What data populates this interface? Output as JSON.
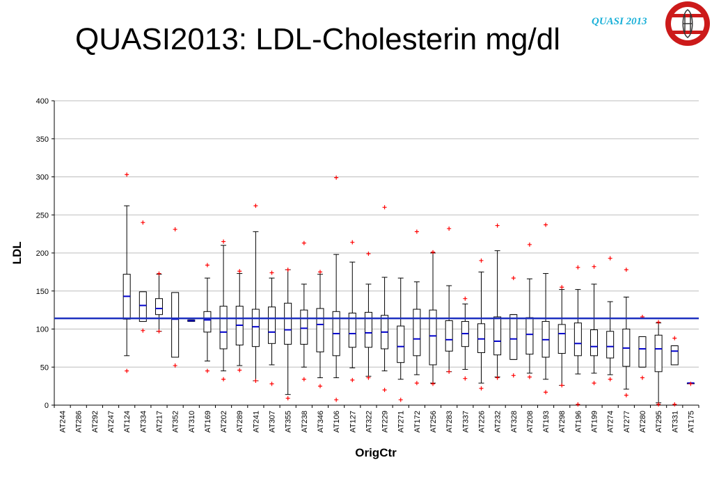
{
  "slide": {
    "title": "QUASI2013: LDL-Cholesterin mg/dl",
    "logo_text": "QUASI 2013"
  },
  "colors": {
    "reference_line": "#1c2fbf",
    "median": "#0000cc",
    "outlier": "#ff0000",
    "logo_text": "#1ab0d8",
    "logo_seal": "#cc1a1a"
  },
  "chart_data": {
    "type": "boxplot",
    "xlabel": "OrigCtr",
    "ylabel": "LDL",
    "ylim": [
      0,
      400
    ],
    "yticks": [
      0,
      50,
      100,
      150,
      200,
      250,
      300,
      350,
      400
    ],
    "grid": true,
    "reference_line": 114,
    "categories": [
      "AT244",
      "AT286",
      "AT292",
      "AT247",
      "AT124",
      "AT334",
      "AT217",
      "AT352",
      "AT310",
      "AT169",
      "AT202",
      "AT289",
      "AT241",
      "AT307",
      "AT355",
      "AT238",
      "AT346",
      "AT106",
      "AT127",
      "AT322",
      "AT229",
      "AT271",
      "AT172",
      "AT256",
      "AT283",
      "AT337",
      "AT226",
      "AT232",
      "AT328",
      "AT208",
      "AT193",
      "AT298",
      "AT196",
      "AT199",
      "AT274",
      "AT277",
      "AT280",
      "AT295",
      "AT331",
      "AT175"
    ],
    "boxes": [
      null,
      null,
      null,
      null,
      {
        "whisker_low": 65,
        "q1": 113,
        "median": 143,
        "q3": 172,
        "whisker_high": 262,
        "outliers": [
          45,
          303
        ]
      },
      {
        "whisker_low": 110,
        "q1": 110,
        "median": 131,
        "q3": 149,
        "whisker_high": 149,
        "outliers": [
          98,
          240
        ]
      },
      {
        "whisker_low": 97,
        "q1": 119,
        "median": 127,
        "q3": 140,
        "whisker_high": 172,
        "outliers": [
          97,
          173
        ]
      },
      {
        "whisker_low": 63,
        "q1": 63,
        "median": 113,
        "q3": 148,
        "whisker_high": 148,
        "outliers": [
          52,
          231
        ]
      },
      {
        "whisker_low": 110,
        "q1": 110,
        "median": 111,
        "q3": 112,
        "whisker_high": 112,
        "outliers": []
      },
      {
        "whisker_low": 58,
        "q1": 96,
        "median": 112,
        "q3": 123,
        "whisker_high": 167,
        "outliers": [
          45,
          184
        ]
      },
      {
        "whisker_low": 45,
        "q1": 74,
        "median": 96,
        "q3": 130,
        "whisker_high": 210,
        "outliers": [
          34,
          215
        ]
      },
      {
        "whisker_low": 52,
        "q1": 79,
        "median": 105,
        "q3": 130,
        "whisker_high": 173,
        "outliers": [
          46,
          176
        ]
      },
      {
        "whisker_low": 32,
        "q1": 77,
        "median": 103,
        "q3": 126,
        "whisker_high": 228,
        "outliers": [
          32,
          262
        ]
      },
      {
        "whisker_low": 53,
        "q1": 81,
        "median": 96,
        "q3": 129,
        "whisker_high": 167,
        "outliers": [
          28,
          174
        ]
      },
      {
        "whisker_low": 14,
        "q1": 80,
        "median": 99,
        "q3": 134,
        "whisker_high": 178,
        "outliers": [
          9,
          178
        ]
      },
      {
        "whisker_low": 50,
        "q1": 80,
        "median": 101,
        "q3": 125,
        "whisker_high": 159,
        "outliers": [
          34,
          213
        ]
      },
      {
        "whisker_low": 36,
        "q1": 70,
        "median": 106,
        "q3": 127,
        "whisker_high": 172,
        "outliers": [
          25,
          175
        ]
      },
      {
        "whisker_low": 36,
        "q1": 65,
        "median": 94,
        "q3": 123,
        "whisker_high": 198,
        "outliers": [
          7,
          299
        ]
      },
      {
        "whisker_low": 49,
        "q1": 76,
        "median": 94,
        "q3": 121,
        "whisker_high": 188,
        "outliers": [
          33,
          214
        ]
      },
      {
        "whisker_low": 38,
        "q1": 76,
        "median": 95,
        "q3": 122,
        "whisker_high": 159,
        "outliers": [
          36,
          199
        ]
      },
      {
        "whisker_low": 45,
        "q1": 74,
        "median": 96,
        "q3": 118,
        "whisker_high": 168,
        "outliers": [
          20,
          260
        ]
      },
      {
        "whisker_low": 34,
        "q1": 56,
        "median": 77,
        "q3": 104,
        "whisker_high": 167,
        "outliers": [
          7
        ]
      },
      {
        "whisker_low": 40,
        "q1": 65,
        "median": 87,
        "q3": 126,
        "whisker_high": 162,
        "outliers": [
          29,
          228
        ]
      },
      {
        "whisker_low": 29,
        "q1": 53,
        "median": 91,
        "q3": 125,
        "whisker_high": 200,
        "outliers": [
          28,
          201
        ]
      },
      {
        "whisker_low": 44,
        "q1": 71,
        "median": 86,
        "q3": 111,
        "whisker_high": 157,
        "outliers": [
          44,
          232
        ]
      },
      {
        "whisker_low": 47,
        "q1": 77,
        "median": 94,
        "q3": 110,
        "whisker_high": 133,
        "outliers": [
          35,
          140
        ]
      },
      {
        "whisker_low": 29,
        "q1": 69,
        "median": 87,
        "q3": 107,
        "whisker_high": 175,
        "outliers": [
          22,
          190
        ]
      },
      {
        "whisker_low": 37,
        "q1": 66,
        "median": 84,
        "q3": 116,
        "whisker_high": 203,
        "outliers": [
          36,
          236
        ]
      },
      {
        "whisker_low": 60,
        "q1": 60,
        "median": 87,
        "q3": 119,
        "whisker_high": 119,
        "outliers": [
          39,
          167
        ]
      },
      {
        "whisker_low": 42,
        "q1": 67,
        "median": 93,
        "q3": 115,
        "whisker_high": 166,
        "outliers": [
          37,
          211
        ]
      },
      {
        "whisker_low": 34,
        "q1": 63,
        "median": 86,
        "q3": 110,
        "whisker_high": 173,
        "outliers": [
          17,
          237
        ]
      },
      {
        "whisker_low": 26,
        "q1": 68,
        "median": 94,
        "q3": 106,
        "whisker_high": 152,
        "outliers": [
          26,
          155
        ]
      },
      {
        "whisker_low": 41,
        "q1": 65,
        "median": 81,
        "q3": 108,
        "whisker_high": 152,
        "outliers": [
          1,
          181
        ]
      },
      {
        "whisker_low": 42,
        "q1": 65,
        "median": 77,
        "q3": 99,
        "whisker_high": 159,
        "outliers": [
          29,
          182
        ]
      },
      {
        "whisker_low": 40,
        "q1": 62,
        "median": 77,
        "q3": 97,
        "whisker_high": 136,
        "outliers": [
          34,
          193
        ]
      },
      {
        "whisker_low": 21,
        "q1": 51,
        "median": 75,
        "q3": 100,
        "whisker_high": 142,
        "outliers": [
          13,
          178
        ]
      },
      {
        "whisker_low": 50,
        "q1": 50,
        "median": 74,
        "q3": 90,
        "whisker_high": 90,
        "outliers": [
          36,
          116
        ]
      },
      {
        "whisker_low": 3,
        "q1": 44,
        "median": 74,
        "q3": 92,
        "whisker_high": 108,
        "outliers": [
          1,
          109
        ]
      },
      {
        "whisker_low": 53,
        "q1": 53,
        "median": 71,
        "q3": 78,
        "whisker_high": 78,
        "outliers": [
          1,
          88
        ]
      },
      {
        "whisker_low": 29,
        "q1": 29,
        "median": 29,
        "q3": 29,
        "whisker_high": 29,
        "outliers": [
          28
        ]
      }
    ]
  }
}
